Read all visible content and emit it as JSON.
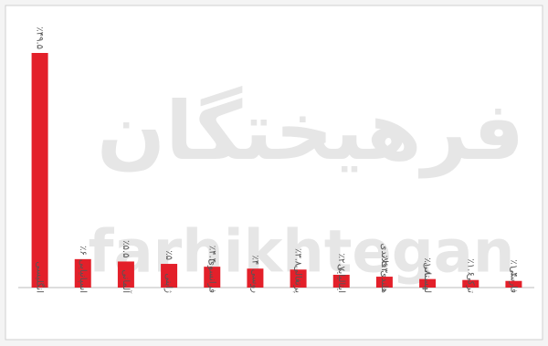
{
  "chart_data": {
    "type": "bar",
    "watermark": [
      "فرهیختگان",
      "farhikhtegan"
    ],
    "categories": [
      "انگلیسی",
      "اسپانیایی",
      "آلمانی",
      "ژاپنی",
      "فرانسوی",
      "روسی",
      "پرتغالی",
      "ایتالیایی",
      "هلندی فلاندی",
      "لهستانی",
      "ترکی",
      "فارسی"
    ],
    "values": [
      49.5,
      6,
      5.5,
      5,
      4.4,
      4,
      3.8,
      2.7,
      2.3,
      1.8,
      1.6,
      1.4
    ],
    "value_labels": [
      "٪۴۹.۵",
      "٪۶",
      "٪۵.۵",
      "٪۵",
      "٪۴.۴",
      "٪۴",
      "٪۳.۸",
      "٪۲.۷",
      "٪۲.۳",
      "٪۱.۸",
      "٪۱.۶",
      "٪۱.۴"
    ],
    "color": "#e3202a"
  }
}
